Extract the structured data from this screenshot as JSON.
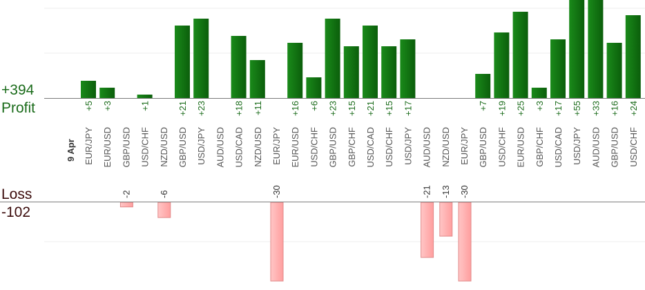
{
  "summary": {
    "profit_total": "+394",
    "profit_label": "Profit",
    "loss_label": "Loss",
    "loss_total": "-102"
  },
  "colors": {
    "profit_bar": "#0b6b0b",
    "profit_bar_light": "#1a8a1a",
    "loss_bar": "#ffb3b3",
    "loss_bar_border": "#e08a8a",
    "profit_text": "#1a6b1a",
    "loss_text": "#3a0a0a",
    "axis": "#7a7a7a",
    "grid": "#ececec"
  },
  "chart_data": {
    "type": "bar",
    "title": "",
    "date_label": "9 Apr",
    "categories": [
      "EUR/JPY",
      "EUR/USD",
      "GBP/USD",
      "USD/CHF",
      "NZD/USD",
      "GBP/USD",
      "USD/JPY",
      "AUD/USD",
      "USD/CAD",
      "NZD/USD",
      "EUR/JPY",
      "EUR/USD",
      "USD/CHF",
      "GBP/USD",
      "GBP/CHF",
      "USD/CAD",
      "USD/CHF",
      "USD/JPY",
      "AUD/USD",
      "NZD/USD",
      "EUR/JPY",
      "GBP/USD",
      "USD/CHF",
      "EUR/USD",
      "GBP/CHF",
      "USD/CAD",
      "USD/JPY",
      "AUD/USD",
      "GBP/USD",
      "USD/CHF"
    ],
    "series": [
      {
        "values": [
          5,
          3,
          null,
          1,
          null,
          21,
          23,
          null,
          18,
          11,
          null,
          16,
          6,
          23,
          15,
          21,
          15,
          17,
          null,
          null,
          null,
          7,
          19,
          25,
          3,
          17,
          55,
          33,
          16,
          24
        ],
        "labels": [
          "+5",
          "+3",
          "",
          "+1",
          "",
          "+21",
          "+23",
          "",
          "+18",
          "+11",
          "",
          "+16",
          "+6",
          "+23",
          "+15",
          "+21",
          "+15",
          "+17",
          "",
          "",
          "",
          "+7",
          "+19",
          "+25",
          "+3",
          "+17",
          "+55",
          "+33",
          "+16",
          "+24"
        ]
      },
      {
        "values": [
          null,
          null,
          -2,
          null,
          -6,
          null,
          null,
          null,
          null,
          null,
          -30,
          null,
          null,
          null,
          null,
          null,
          null,
          null,
          -21,
          -13,
          -30,
          null,
          null,
          null,
          null,
          null,
          null,
          null,
          null,
          null
        ],
        "labels": [
          "",
          "",
          "-2",
          "",
          "-6",
          "",
          "",
          "",
          "",
          "",
          "-30",
          "",
          "",
          "",
          "",
          "",
          "",
          "",
          "-21",
          "-13",
          "-30",
          "",
          "",
          "",
          "",
          "",
          "",
          "",
          "",
          ""
        ]
      }
    ],
    "xlabel": "",
    "ylabel": "",
    "grid": true,
    "legend": "none"
  }
}
